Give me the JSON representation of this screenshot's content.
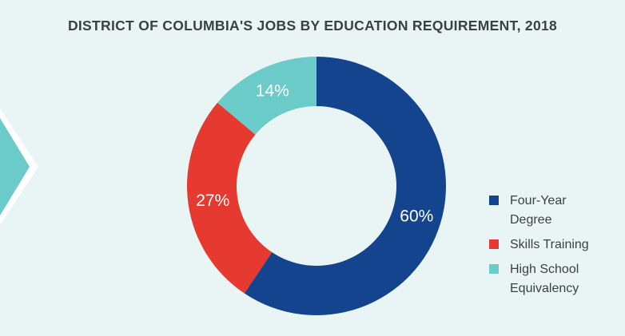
{
  "chart_data": {
    "type": "pie",
    "title": "DISTRICT OF COLUMBIA'S JOBS BY EDUCATION REQUIREMENT, 2018",
    "slices": [
      {
        "label": "Four-Year\nDegree",
        "value": 60,
        "display": "60%",
        "color": "#15448f"
      },
      {
        "label": "Skills Training",
        "value": 27,
        "display": "27%",
        "color": "#e63a30"
      },
      {
        "label": "High School\nEquivalency",
        "value": 14,
        "display": "14%",
        "color": "#6acbc8"
      }
    ],
    "legend_position": "right",
    "donut": true
  },
  "colors": {
    "background": "#e9f5f4",
    "arrow": "#6acbc8"
  }
}
